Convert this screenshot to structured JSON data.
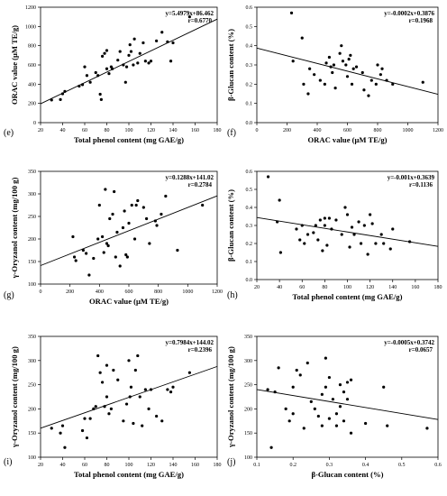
{
  "chart_data": [
    {
      "panel": "(e)",
      "type": "scatter",
      "xlabel": "Total phenol content (mg GAE/g)",
      "ylabel": "ORAC value (μM TE/g)",
      "xlim": [
        20,
        180
      ],
      "ylim": [
        0,
        1200
      ],
      "xticks": [
        20,
        40,
        60,
        80,
        100,
        120,
        140,
        160,
        180
      ],
      "yticks": [
        0,
        200,
        400,
        600,
        800,
        1000,
        1200
      ],
      "equation": "y=5.4979x+86.462",
      "r": "r=0.6770",
      "fit": {
        "slope": 5.4979,
        "intercept": 86.462
      },
      "points": [
        [
          30,
          235
        ],
        [
          38,
          240
        ],
        [
          40,
          300
        ],
        [
          42,
          325
        ],
        [
          55,
          380
        ],
        [
          58,
          395
        ],
        [
          60,
          580
        ],
        [
          62,
          490
        ],
        [
          65,
          420
        ],
        [
          70,
          520
        ],
        [
          72,
          490
        ],
        [
          74,
          295
        ],
        [
          75,
          240
        ],
        [
          76,
          690
        ],
        [
          78,
          720
        ],
        [
          80,
          750
        ],
        [
          80,
          560
        ],
        [
          82,
          510
        ],
        [
          84,
          580
        ],
        [
          85,
          560
        ],
        [
          90,
          650
        ],
        [
          92,
          740
        ],
        [
          95,
          600
        ],
        [
          97,
          420
        ],
        [
          98,
          580
        ],
        [
          100,
          700
        ],
        [
          101,
          810
        ],
        [
          102,
          740
        ],
        [
          104,
          600
        ],
        [
          105,
          870
        ],
        [
          108,
          620
        ],
        [
          110,
          720
        ],
        [
          113,
          830
        ],
        [
          115,
          640
        ],
        [
          118,
          620
        ],
        [
          120,
          640
        ],
        [
          125,
          850
        ],
        [
          130,
          940
        ],
        [
          135,
          840
        ],
        [
          138,
          640
        ],
        [
          140,
          830
        ],
        [
          155,
          1100
        ]
      ]
    },
    {
      "panel": "(f)",
      "type": "scatter",
      "xlabel": "ORAC value (μM TE/g)",
      "ylabel": "β-Glucan content (%)",
      "xlim": [
        0,
        1200
      ],
      "ylim": [
        0.0,
        0.6
      ],
      "xticks": [
        0,
        200,
        400,
        600,
        800,
        1000,
        1200
      ],
      "yticks": [
        0.0,
        0.1,
        0.2,
        0.3,
        0.4,
        0.5,
        0.6
      ],
      "equation": "y=-0.0002x+0.3876",
      "r": "r=0.1968",
      "fit": {
        "slope": -0.0002,
        "intercept": 0.3876
      },
      "points": [
        [
          230,
          0.57
        ],
        [
          240,
          0.32
        ],
        [
          300,
          0.44
        ],
        [
          310,
          0.2
        ],
        [
          340,
          0.15
        ],
        [
          350,
          0.28
        ],
        [
          380,
          0.25
        ],
        [
          420,
          0.22
        ],
        [
          450,
          0.2
        ],
        [
          460,
          0.31
        ],
        [
          480,
          0.34
        ],
        [
          490,
          0.29
        ],
        [
          500,
          0.26
        ],
        [
          510,
          0.3
        ],
        [
          520,
          0.18
        ],
        [
          550,
          0.36
        ],
        [
          560,
          0.4
        ],
        [
          570,
          0.32
        ],
        [
          590,
          0.3
        ],
        [
          600,
          0.24
        ],
        [
          610,
          0.33
        ],
        [
          620,
          0.35
        ],
        [
          630,
          0.2
        ],
        [
          640,
          0.28
        ],
        [
          660,
          0.29
        ],
        [
          700,
          0.26
        ],
        [
          710,
          0.17
        ],
        [
          740,
          0.14
        ],
        [
          760,
          0.22
        ],
        [
          790,
          0.2
        ],
        [
          800,
          0.3
        ],
        [
          820,
          0.25
        ],
        [
          830,
          0.28
        ],
        [
          860,
          0.22
        ],
        [
          900,
          0.2
        ],
        [
          1100,
          0.21
        ]
      ]
    },
    {
      "panel": "(g)",
      "type": "scatter",
      "xlabel": "ORAC value (μM TE/g)",
      "ylabel": "γ-Oryzanol content (mg/100 g)",
      "xlim": [
        0,
        1200
      ],
      "ylim": [
        100,
        350
      ],
      "xticks": [
        0,
        200,
        400,
        600,
        800,
        1000,
        1200
      ],
      "yticks": [
        100,
        150,
        200,
        250,
        300,
        350
      ],
      "equation": "y=0.1288x+141.02",
      "r": "r=0.2784",
      "fit": {
        "slope": 0.1288,
        "intercept": 141.02
      },
      "points": [
        [
          220,
          205
        ],
        [
          230,
          160
        ],
        [
          240,
          152
        ],
        [
          290,
          175
        ],
        [
          310,
          168
        ],
        [
          330,
          120
        ],
        [
          360,
          157
        ],
        [
          390,
          200
        ],
        [
          400,
          275
        ],
        [
          420,
          205
        ],
        [
          430,
          170
        ],
        [
          440,
          310
        ],
        [
          450,
          190
        ],
        [
          460,
          185
        ],
        [
          470,
          245
        ],
        [
          490,
          255
        ],
        [
          500,
          305
        ],
        [
          510,
          160
        ],
        [
          520,
          215
        ],
        [
          540,
          140
        ],
        [
          560,
          225
        ],
        [
          570,
          262
        ],
        [
          580,
          165
        ],
        [
          590,
          160
        ],
        [
          600,
          235
        ],
        [
          620,
          275
        ],
        [
          640,
          200
        ],
        [
          650,
          275
        ],
        [
          660,
          285
        ],
        [
          700,
          270
        ],
        [
          720,
          245
        ],
        [
          740,
          190
        ],
        [
          780,
          240
        ],
        [
          790,
          230
        ],
        [
          820,
          255
        ],
        [
          850,
          295
        ],
        [
          930,
          175
        ],
        [
          1100,
          275
        ]
      ]
    },
    {
      "panel": "(h)",
      "type": "scatter",
      "xlabel": "Total phenol content (mg GAE/g)",
      "ylabel": "β-Glucan content (%)",
      "xlim": [
        20,
        180
      ],
      "ylim": [
        0.0,
        0.6
      ],
      "xticks": [
        20,
        40,
        60,
        80,
        100,
        120,
        140,
        160,
        180
      ],
      "yticks": [
        0.0,
        0.1,
        0.2,
        0.3,
        0.4,
        0.5,
        0.6
      ],
      "equation": "y=-0.001x+0.3639",
      "r": "r=0.1136",
      "fit": {
        "slope": -0.001,
        "intercept": 0.3639
      },
      "points": [
        [
          30,
          0.57
        ],
        [
          38,
          0.32
        ],
        [
          40,
          0.44
        ],
        [
          41,
          0.15
        ],
        [
          55,
          0.28
        ],
        [
          58,
          0.22
        ],
        [
          60,
          0.3
        ],
        [
          62,
          0.2
        ],
        [
          65,
          0.25
        ],
        [
          70,
          0.26
        ],
        [
          72,
          0.3
        ],
        [
          74,
          0.22
        ],
        [
          76,
          0.33
        ],
        [
          78,
          0.16
        ],
        [
          80,
          0.3
        ],
        [
          80,
          0.34
        ],
        [
          82,
          0.19
        ],
        [
          84,
          0.34
        ],
        [
          86,
          0.28
        ],
        [
          90,
          0.33
        ],
        [
          95,
          0.25
        ],
        [
          98,
          0.4
        ],
        [
          100,
          0.36
        ],
        [
          102,
          0.18
        ],
        [
          104,
          0.29
        ],
        [
          106,
          0.25
        ],
        [
          110,
          0.32
        ],
        [
          112,
          0.2
        ],
        [
          115,
          0.3
        ],
        [
          118,
          0.14
        ],
        [
          120,
          0.36
        ],
        [
          122,
          0.31
        ],
        [
          125,
          0.2
        ],
        [
          130,
          0.25
        ],
        [
          132,
          0.2
        ],
        [
          138,
          0.17
        ],
        [
          140,
          0.28
        ],
        [
          155,
          0.21
        ]
      ]
    },
    {
      "panel": "(i)",
      "type": "scatter",
      "xlabel": "Total phenol content (mg GAE/g)",
      "ylabel": "γ-Oryzanol content (mg/100 g)",
      "xlim": [
        20,
        180
      ],
      "ylim": [
        100,
        350
      ],
      "xticks": [
        20,
        40,
        60,
        80,
        100,
        120,
        140,
        160,
        180
      ],
      "yticks": [
        100,
        150,
        200,
        250,
        300,
        350
      ],
      "equation": "y=0.7984x+144.02",
      "r": "r=0.2396",
      "fit": {
        "slope": 0.7984,
        "intercept": 144.02
      },
      "points": [
        [
          30,
          160
        ],
        [
          38,
          150
        ],
        [
          40,
          165
        ],
        [
          42,
          120
        ],
        [
          58,
          155
        ],
        [
          60,
          180
        ],
        [
          62,
          140
        ],
        [
          65,
          180
        ],
        [
          68,
          200
        ],
        [
          70,
          205
        ],
        [
          72,
          310
        ],
        [
          74,
          275
        ],
        [
          76,
          255
        ],
        [
          78,
          205
        ],
        [
          80,
          225
        ],
        [
          80,
          290
        ],
        [
          82,
          190
        ],
        [
          84,
          200
        ],
        [
          86,
          280
        ],
        [
          90,
          260
        ],
        [
          95,
          175
        ],
        [
          98,
          210
        ],
        [
          100,
          300
        ],
        [
          101,
          225
        ],
        [
          102,
          245
        ],
        [
          104,
          170
        ],
        [
          106,
          280
        ],
        [
          108,
          310
        ],
        [
          110,
          225
        ],
        [
          112,
          165
        ],
        [
          115,
          240
        ],
        [
          118,
          200
        ],
        [
          120,
          240
        ],
        [
          125,
          185
        ],
        [
          130,
          175
        ],
        [
          135,
          240
        ],
        [
          138,
          235
        ],
        [
          140,
          245
        ],
        [
          155,
          275
        ]
      ]
    },
    {
      "panel": "(j)",
      "type": "scatter",
      "xlabel": "β-Glucan content (%)",
      "ylabel": "γ-Oryzanol content (mg/100 g)",
      "xlim": [
        0.1,
        0.6
      ],
      "ylim": [
        100,
        350
      ],
      "xticks": [
        0.1,
        0.2,
        0.3,
        0.4,
        0.5,
        0.6
      ],
      "yticks": [
        100,
        150,
        200,
        250,
        300,
        350
      ],
      "equation": "y=-0.0005x+0.3742",
      "r": "r=0.0657",
      "fit": {
        "slope": -0.0005,
        "intercept": 0.3742
      },
      "fit_plot": [
        [
          0.1,
          240
        ],
        [
          0.6,
          178
        ]
      ],
      "points": [
        [
          0.13,
          240
        ],
        [
          0.14,
          120
        ],
        [
          0.15,
          235
        ],
        [
          0.16,
          285
        ],
        [
          0.18,
          200
        ],
        [
          0.19,
          175
        ],
        [
          0.2,
          245
        ],
        [
          0.2,
          190
        ],
        [
          0.21,
          280
        ],
        [
          0.22,
          270
        ],
        [
          0.23,
          160
        ],
        [
          0.24,
          295
        ],
        [
          0.25,
          215
        ],
        [
          0.26,
          200
        ],
        [
          0.27,
          185
        ],
        [
          0.28,
          165
        ],
        [
          0.28,
          230
        ],
        [
          0.29,
          305
        ],
        [
          0.29,
          245
        ],
        [
          0.3,
          265
        ],
        [
          0.3,
          180
        ],
        [
          0.31,
          220
        ],
        [
          0.32,
          190
        ],
        [
          0.32,
          165
        ],
        [
          0.33,
          250
        ],
        [
          0.33,
          205
        ],
        [
          0.34,
          235
        ],
        [
          0.34,
          175
        ],
        [
          0.35,
          255
        ],
        [
          0.35,
          220
        ],
        [
          0.36,
          260
        ],
        [
          0.36,
          150
        ],
        [
          0.4,
          170
        ],
        [
          0.45,
          245
        ],
        [
          0.46,
          165
        ],
        [
          0.57,
          160
        ]
      ]
    }
  ]
}
